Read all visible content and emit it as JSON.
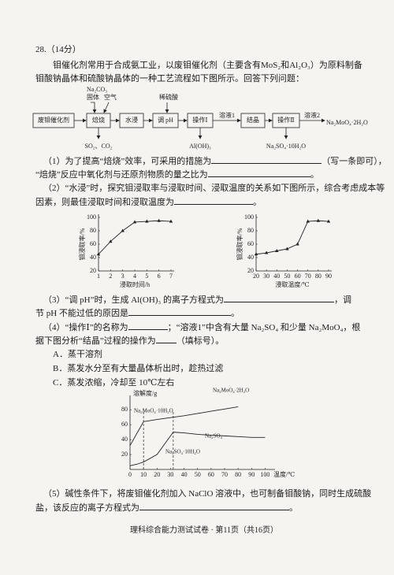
{
  "header": {
    "number": "28.（14分）"
  },
  "intro": [
    "钼催化剂常用于合成氨工业，以废钼催化剂（主要含有MoS₂和Al₂O₃）为原料制备",
    "钼酸钠晶体和硫酸钠晶体的一种工艺流程如下图所示。回答下列问题："
  ],
  "flow": {
    "nodes": [
      "废钼催化剂",
      "焙烧",
      "水浸",
      "调 pH",
      "操作Ⅰ",
      "结晶",
      "操作Ⅱ"
    ],
    "product": "Na₂MoO₄·2H₂O",
    "inputs": [
      "Na₂CO₃",
      "固体",
      "空气",
      "稀硫酸"
    ],
    "outputs": [
      "SO₂、CO₂",
      "Al(OH)₃",
      "Na₂SO₄·10H₂O"
    ],
    "streams": [
      "溶液1",
      "溶液2"
    ]
  },
  "questions": {
    "q1": [
      "（1）为了提高“焙烧”效率，可采用的措施为",
      "（写一条即可），",
      "“焙烧”反应中氧化剂与还原剂物质的量之比为",
      "。"
    ],
    "q2": [
      "（2）“水浸”时，探究钼浸取率与浸取时间、浸取温度的关系如下图所示，综合考虑成本等",
      "因素，则最佳浸取时间和浸取温度为",
      "。"
    ],
    "q3": [
      "（3）“调 pH”时，生成 Al(OH)₃ 的离子方程式为",
      "，调",
      "节 pH 不能过低的原因是",
      "。"
    ],
    "q4": [
      "（4）“操作Ⅰ”的名称为",
      "；“溶液1”中含有大量 Na₂SO₄ 和少量 Na₂MoO₄，根",
      "据下图分析“结晶”过程的操作为",
      "（填标号）。"
    ],
    "options": [
      "A．蒸干溶剂",
      "B．蒸发水分至有大量晶体析出时，趁热过滤",
      "C．蒸发浓缩，冷却至 10℃左右"
    ],
    "q5": [
      "（5）碱性条件下，将废钼催化剂加入 NaClO 溶液中，也可制备钼酸钠，同时生成硫酸",
      "盐，该反应的离子方程式为",
      "。"
    ]
  },
  "chart_data": [
    {
      "type": "line",
      "xlabel": "浸取时间/h",
      "ylabel": "钼浸取率/%",
      "x": [
        1,
        2,
        3,
        4,
        5,
        6,
        7
      ],
      "values": [
        45,
        64,
        80,
        93,
        94,
        95,
        94
      ],
      "color": "#222",
      "marker": "triangle",
      "xlim": [
        1,
        7
      ],
      "ylim": [
        20,
        100
      ],
      "xticks": [
        1,
        2,
        3,
        4,
        5,
        6,
        7
      ],
      "yticks": [
        20,
        40,
        60,
        80,
        100
      ]
    },
    {
      "type": "line",
      "xlabel": "浸取温度/℃",
      "ylabel": "钼浸取率/%",
      "x": [
        20,
        30,
        40,
        50,
        60,
        70,
        80,
        90
      ],
      "values": [
        45,
        47,
        50,
        53,
        60,
        94,
        95,
        94
      ],
      "color": "#222",
      "marker": "triangle",
      "xlim": [
        20,
        90
      ],
      "ylim": [
        20,
        100
      ],
      "xticks": [
        20,
        30,
        40,
        50,
        60,
        70,
        80,
        90
      ],
      "yticks": [
        20,
        40,
        60,
        80,
        100
      ]
    },
    {
      "type": "line",
      "xlabel": "温度/℃",
      "ylabel": "溶解度/g",
      "x": [
        0,
        5,
        10,
        20,
        32,
        40,
        50,
        60,
        70,
        80,
        90,
        100
      ],
      "series": [
        {
          "name": "Na₂MoO₄·2H₂O",
          "color": "#222",
          "values": [
            null,
            null,
            64,
            67,
            70,
            72,
            75,
            78,
            81,
            84,
            null,
            null
          ]
        },
        {
          "name": "Na₂MoO₄·10H₂O",
          "color": "#222",
          "values": [
            32,
            48,
            64,
            null,
            null,
            null,
            null,
            null,
            null,
            null,
            null,
            null
          ]
        },
        {
          "name": "Na₂SO₄",
          "color": "#222",
          "values": [
            null,
            null,
            null,
            null,
            50,
            49,
            47,
            46,
            45,
            44,
            43,
            43
          ]
        },
        {
          "name": "Na₂SO₄·10H₂O",
          "color": "#222",
          "values": [
            5,
            7,
            10,
            20,
            50,
            null,
            null,
            null,
            null,
            null,
            null,
            null
          ]
        }
      ],
      "vlines": [
        10,
        32
      ],
      "xlim": [
        0,
        105
      ],
      "ylim": [
        0,
        95
      ],
      "xticks": [
        0,
        10,
        20,
        30,
        40,
        50,
        60,
        70,
        80,
        90,
        100
      ],
      "yticks": [
        20,
        40,
        60,
        80
      ]
    }
  ],
  "footer": "理科综合能力测试试卷 · 第11页（共16页）"
}
